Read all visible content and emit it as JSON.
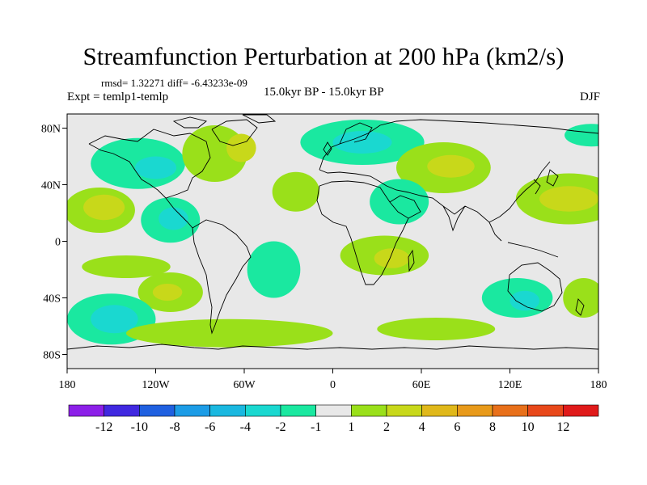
{
  "title": "Streamfunction Perturbation at 200 hPa (km2/s)",
  "stats": "rmsd= 1.32271 diff= -6.43233e-09",
  "experiment": "Expt = temlp1-temlp",
  "period": "15.0kyr BP - 15.0kyr BP",
  "season": "DJF",
  "map": {
    "lat_range": [
      -90,
      90
    ],
    "lon_range": [
      -180,
      180
    ],
    "lat_ticks": [
      {
        "value": 80,
        "label": "80N"
      },
      {
        "value": 40,
        "label": "40N"
      },
      {
        "value": 0,
        "label": "0"
      },
      {
        "value": -40,
        "label": "40S"
      },
      {
        "value": -80,
        "label": "80S"
      }
    ],
    "lon_ticks": [
      {
        "value": -180,
        "label": "180"
      },
      {
        "value": -120,
        "label": "120W"
      },
      {
        "value": -60,
        "label": "60W"
      },
      {
        "value": 0,
        "label": "0"
      },
      {
        "value": 60,
        "label": "60E"
      },
      {
        "value": 120,
        "label": "120E"
      },
      {
        "value": 180,
        "label": "180"
      }
    ],
    "background_color": "#e8e8e8"
  },
  "colorbar": {
    "bins": [
      "#8c1fe8",
      "#4028e0",
      "#1f60e0",
      "#1c9ce6",
      "#1ab8e0",
      "#1ad8d0",
      "#1ae8a0",
      "#e8e8e8",
      "#9ae01a",
      "#c8d81a",
      "#e0b81a",
      "#e89a1a",
      "#e8701a",
      "#e8481a",
      "#e01a1a"
    ],
    "labels": [
      "-12",
      "-10",
      "-8",
      "-6",
      "-4",
      "-2",
      "-1",
      "1",
      "2",
      "4",
      "6",
      "8",
      "10",
      "12"
    ]
  },
  "anomaly_fields": [
    {
      "level": "-1",
      "color": "#1ae8a0",
      "lon": -132,
      "lat": 55,
      "rlon": 32,
      "rlat": 18
    },
    {
      "level": "-2",
      "color": "#1ad8d0",
      "lon": -120,
      "lat": 52,
      "rlon": 14,
      "rlat": 8
    },
    {
      "level": "1",
      "color": "#9ae01a",
      "lon": -80,
      "lat": 62,
      "rlon": 22,
      "rlat": 20
    },
    {
      "level": "2",
      "color": "#c8d81a",
      "lon": -62,
      "lat": 66,
      "rlon": 10,
      "rlat": 10
    },
    {
      "level": "-1",
      "color": "#1ae8a0",
      "lon": -110,
      "lat": 15,
      "rlon": 20,
      "rlat": 16
    },
    {
      "level": "-2",
      "color": "#1ad8d0",
      "lon": -108,
      "lat": 16,
      "rlon": 10,
      "rlat": 8
    },
    {
      "level": "1",
      "color": "#9ae01a",
      "lon": -158,
      "lat": 22,
      "rlon": 24,
      "rlat": 16
    },
    {
      "level": "2",
      "color": "#c8d81a",
      "lon": -155,
      "lat": 24,
      "rlon": 14,
      "rlat": 9
    },
    {
      "level": "1",
      "color": "#9ae01a",
      "lon": -140,
      "lat": -18,
      "rlon": 30,
      "rlat": 8
    },
    {
      "level": "1",
      "color": "#9ae01a",
      "lon": -110,
      "lat": -36,
      "rlon": 22,
      "rlat": 14
    },
    {
      "level": "2",
      "color": "#c8d81a",
      "lon": -112,
      "lat": -36,
      "rlon": 10,
      "rlat": 6
    },
    {
      "level": "-1",
      "color": "#1ae8a0",
      "lon": -150,
      "lat": -55,
      "rlon": 30,
      "rlat": 18
    },
    {
      "level": "-2",
      "color": "#1ad8d0",
      "lon": -148,
      "lat": -55,
      "rlon": 16,
      "rlat": 10
    },
    {
      "level": "1",
      "color": "#9ae01a",
      "lon": -25,
      "lat": 35,
      "rlon": 16,
      "rlat": 14
    },
    {
      "level": "-1",
      "color": "#1ae8a0",
      "lon": -40,
      "lat": -20,
      "rlon": 18,
      "rlat": 20
    },
    {
      "level": "1",
      "color": "#9ae01a",
      "lon": -70,
      "lat": -65,
      "rlon": 70,
      "rlat": 10
    },
    {
      "level": "-1",
      "color": "#1ae8a0",
      "lon": 20,
      "lat": 70,
      "rlon": 42,
      "rlat": 16
    },
    {
      "level": "-2",
      "color": "#1ad8d0",
      "lon": 20,
      "lat": 70,
      "rlon": 20,
      "rlat": 8
    },
    {
      "level": "1",
      "color": "#9ae01a",
      "lon": 75,
      "lat": 52,
      "rlon": 32,
      "rlat": 18
    },
    {
      "level": "2",
      "color": "#c8d81a",
      "lon": 80,
      "lat": 53,
      "rlon": 16,
      "rlat": 8
    },
    {
      "level": "-1",
      "color": "#1ae8a0",
      "lon": 45,
      "lat": 28,
      "rlon": 20,
      "rlat": 16
    },
    {
      "level": "-1",
      "color": "#1ae8a0",
      "lon": 175,
      "lat": 75,
      "rlon": 18,
      "rlat": 8
    },
    {
      "level": "1",
      "color": "#9ae01a",
      "lon": 160,
      "lat": 30,
      "rlon": 36,
      "rlat": 18
    },
    {
      "level": "2",
      "color": "#c8d81a",
      "lon": 160,
      "lat": 30,
      "rlon": 20,
      "rlat": 9
    },
    {
      "level": "1",
      "color": "#9ae01a",
      "lon": 35,
      "lat": -10,
      "rlon": 30,
      "rlat": 14
    },
    {
      "level": "2",
      "color": "#c8d81a",
      "lon": 40,
      "lat": -12,
      "rlon": 12,
      "rlat": 7
    },
    {
      "level": "-1",
      "color": "#1ae8a0",
      "lon": 125,
      "lat": -40,
      "rlon": 24,
      "rlat": 14
    },
    {
      "level": "-2",
      "color": "#1ad8d0",
      "lon": 130,
      "lat": -42,
      "rlon": 10,
      "rlat": 7
    },
    {
      "level": "1",
      "color": "#9ae01a",
      "lon": 170,
      "lat": -40,
      "rlon": 14,
      "rlat": 14
    },
    {
      "level": "1",
      "color": "#9ae01a",
      "lon": 70,
      "lat": -62,
      "rlon": 40,
      "rlat": 8
    }
  ]
}
